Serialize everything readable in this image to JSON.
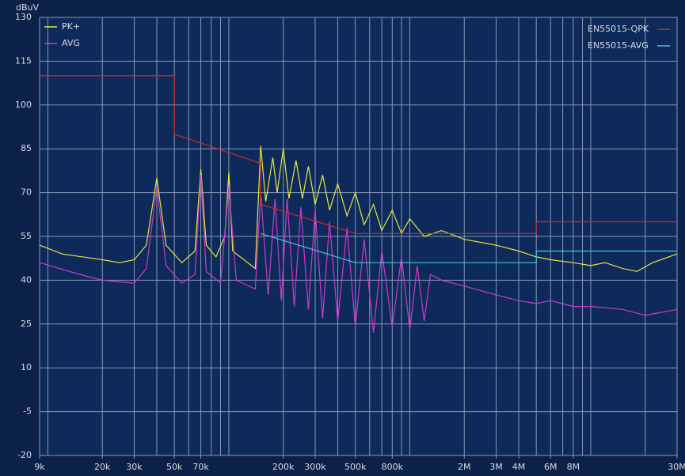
{
  "chart_data": {
    "type": "line",
    "ylabel": "dBuV",
    "log_x": true,
    "grid": true,
    "xlim": [
      9000,
      30000000
    ],
    "ylim": [
      -20,
      130
    ],
    "yticks": [
      130,
      115,
      100,
      85,
      70,
      55,
      40,
      25,
      10,
      -5,
      -20
    ],
    "xticks": [
      {
        "value": 9000,
        "label": "9k"
      },
      {
        "value": 20000,
        "label": "20k"
      },
      {
        "value": 30000,
        "label": "30k"
      },
      {
        "value": 50000,
        "label": "50k"
      },
      {
        "value": 70000,
        "label": "70k"
      },
      {
        "value": 200000,
        "label": "200k"
      },
      {
        "value": 300000,
        "label": "300k"
      },
      {
        "value": 500000,
        "label": "500k"
      },
      {
        "value": 800000,
        "label": "800k"
      },
      {
        "value": 2000000,
        "label": "2M"
      },
      {
        "value": 3000000,
        "label": "3M"
      },
      {
        "value": 4000000,
        "label": "4M"
      },
      {
        "value": 6000000,
        "label": "6M"
      },
      {
        "value": 8000000,
        "label": "8M"
      },
      {
        "value": 30000000,
        "label": "30M"
      }
    ],
    "xgrid": [
      10000,
      20000,
      30000,
      40000,
      50000,
      60000,
      70000,
      80000,
      90000,
      100000,
      200000,
      300000,
      400000,
      500000,
      600000,
      700000,
      800000,
      900000,
      1000000,
      2000000,
      3000000,
      4000000,
      5000000,
      6000000,
      7000000,
      8000000,
      9000000,
      10000000,
      20000000
    ],
    "series": [
      {
        "name": "PK+",
        "color": "#e6e640",
        "x": [
          9000,
          12000,
          20000,
          25000,
          30000,
          35000,
          40000,
          45000,
          55000,
          65000,
          70000,
          75000,
          85000,
          95000,
          100000,
          105000,
          140000,
          150000,
          160000,
          175000,
          185000,
          200000,
          215000,
          235000,
          255000,
          275000,
          300000,
          330000,
          360000,
          400000,
          450000,
          500000,
          560000,
          630000,
          700000,
          800000,
          900000,
          1000000,
          1200000,
          1500000,
          2000000,
          3000000,
          4000000,
          5000000,
          6000000,
          8000000,
          10000000,
          12000000,
          15000000,
          18000000,
          22000000,
          30000000
        ],
        "values": [
          52,
          49,
          47,
          46,
          47,
          52,
          75,
          52,
          46,
          50,
          78,
          52,
          48,
          55,
          77,
          50,
          44,
          86,
          67,
          82,
          70,
          85,
          68,
          81,
          68,
          79,
          66,
          76,
          64,
          73,
          62,
          70,
          59,
          66,
          57,
          64,
          56,
          61,
          55,
          57,
          54,
          52,
          50,
          48,
          47,
          46,
          45,
          46,
          44,
          43,
          46,
          49
        ]
      },
      {
        "name": "AVG",
        "color": "#cc3ccc",
        "x": [
          9000,
          15000,
          20000,
          30000,
          35000,
          40000,
          45000,
          55000,
          65000,
          70000,
          75000,
          90000,
          100000,
          110000,
          140000,
          150000,
          165000,
          180000,
          195000,
          210000,
          230000,
          250000,
          275000,
          300000,
          330000,
          360000,
          400000,
          450000,
          500000,
          560000,
          630000,
          700000,
          800000,
          900000,
          1000000,
          1100000,
          1200000,
          1300000,
          1500000,
          2000000,
          3000000,
          4000000,
          5000000,
          6000000,
          8000000,
          10000000,
          15000000,
          20000000,
          30000000
        ],
        "values": [
          46,
          42,
          40,
          39,
          44,
          72,
          45,
          39,
          42,
          76,
          43,
          39,
          72,
          40,
          37,
          70,
          35,
          68,
          33,
          68,
          31,
          65,
          30,
          64,
          27,
          60,
          26,
          58,
          24,
          54,
          22,
          50,
          24,
          48,
          23,
          45,
          26,
          42,
          40,
          38,
          35,
          33,
          32,
          33,
          31,
          31,
          30,
          28,
          30
        ]
      },
      {
        "name": "EN55015-QPK",
        "color": "#cc2a2a",
        "x": [
          9000,
          50000,
          50000,
          150000,
          150000,
          500000,
          5000000,
          5000000,
          30000000
        ],
        "values": [
          110,
          110,
          90,
          80,
          66,
          56,
          56,
          60,
          60
        ]
      },
      {
        "name": "EN55015-AVG",
        "color": "#3cc8dc",
        "x": [
          150000,
          500000,
          5000000,
          5000000,
          30000000
        ],
        "values": [
          56,
          46,
          46,
          50,
          50
        ]
      }
    ]
  }
}
